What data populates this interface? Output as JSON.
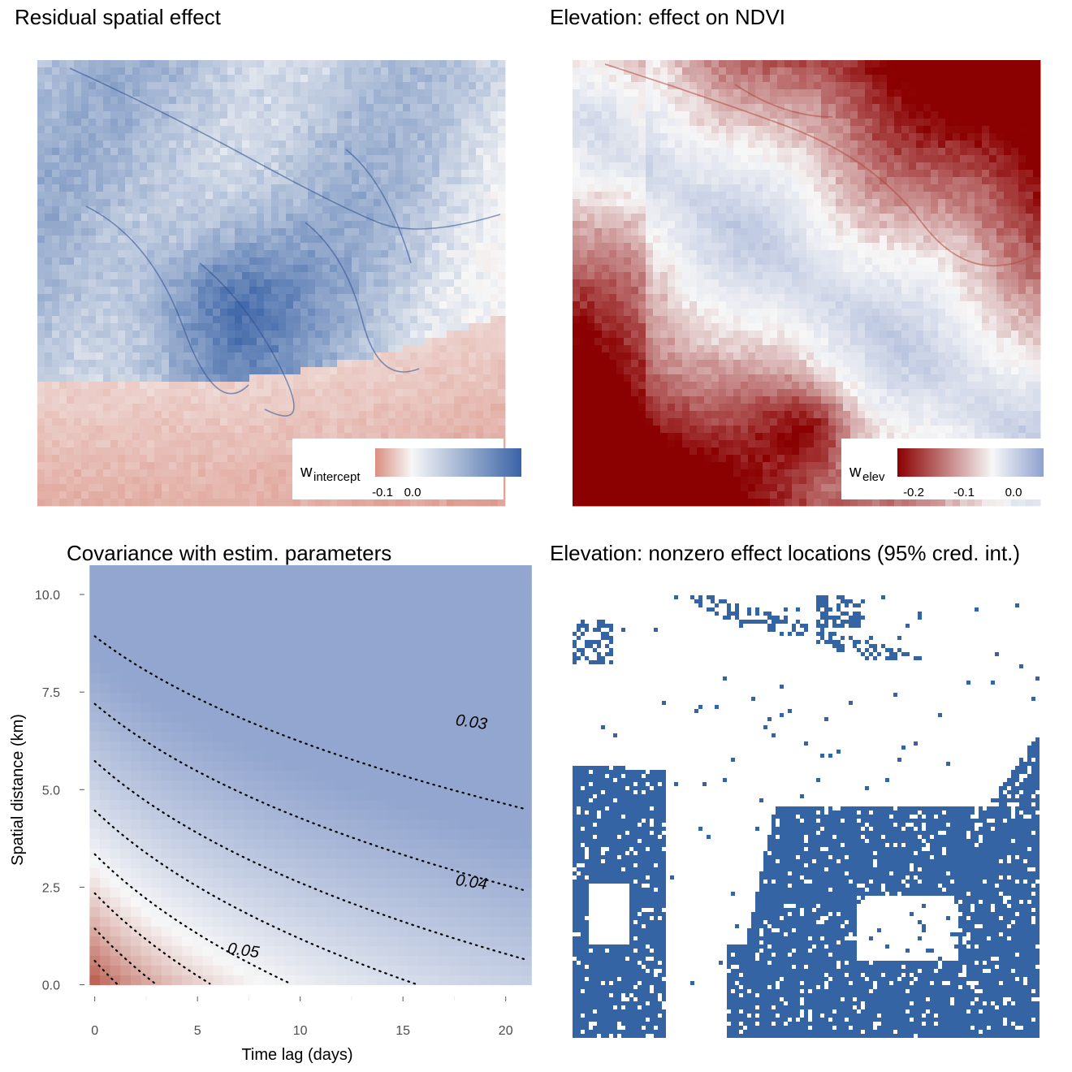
{
  "panels": {
    "intercept": {
      "title": "Residual spatial effect",
      "legend": {
        "label_main": "w",
        "label_sub": "intercept",
        "ticks": [
          "-0.1",
          "0.0"
        ]
      },
      "colors": {
        "low": "#d98e80",
        "mid": "#f7f7f7",
        "high": "#3a63a6"
      }
    },
    "elev": {
      "title": "Elevation: effect on NDVI",
      "legend": {
        "label_main": "w",
        "label_sub": "elev",
        "ticks": [
          "-0.2",
          "-0.1",
          "0.0"
        ]
      },
      "colors": {
        "low": "#8b0000",
        "mid": "#f7f7f7",
        "high": "#8ea1ce"
      }
    },
    "nonzero": {
      "title": "Elevation: nonzero effect locations (95% cred. int.)",
      "colors": {
        "fill": "#3564a4"
      }
    }
  },
  "chart_data": [
    {
      "type": "heatmap",
      "title": "Covariance with estim. parameters",
      "xlabel": "Time lag (days)",
      "ylabel": "Spatial distance (km)",
      "xlim": [
        -0.5,
        21
      ],
      "ylim": [
        -0.3,
        10.5
      ],
      "x_ticks": [
        0,
        5,
        10,
        15,
        20
      ],
      "y_ticks": [
        0.0,
        2.5,
        5.0,
        7.5,
        10.0
      ],
      "x_tick_labels": [
        "0",
        "5",
        "10",
        "15",
        "20"
      ],
      "y_tick_labels": [
        "0.0",
        "2.5",
        "5.0",
        "7.5",
        "10.0"
      ],
      "contour_levels": [
        0.025,
        0.03,
        0.035,
        0.04,
        0.045,
        0.05,
        0.055,
        0.06
      ],
      "contour_labels": [
        {
          "text": "0.03",
          "x": 18.3,
          "y": 6.6
        },
        {
          "text": "0.04",
          "x": 18.3,
          "y": 2.5
        },
        {
          "text": "0.05",
          "x": 7.2,
          "y": 0.75
        }
      ],
      "colors": {
        "low": "#b4493a",
        "mid": "#f7f7f7",
        "high": "#93a6cf"
      },
      "grid": true
    }
  ]
}
